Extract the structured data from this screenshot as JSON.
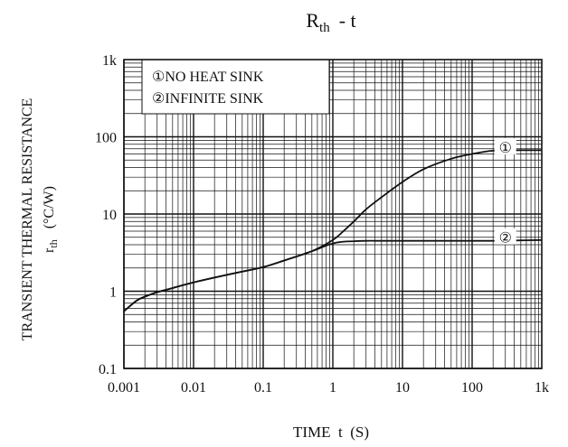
{
  "chart_data": {
    "type": "line",
    "title": {
      "main": "R",
      "sub": "th",
      "suffix": "- t"
    },
    "xlabel": "TIME  t  (S)",
    "ylabel": {
      "line1": "TRANSIENT THERMAL RESISTANCE",
      "symbol": "r",
      "sub": "th",
      "unit": "(°C/W)"
    },
    "x_scale": "log",
    "y_scale": "log",
    "xlim": [
      0.001,
      1000
    ],
    "ylim": [
      0.1,
      1000
    ],
    "grid": true,
    "x_ticks": [
      {
        "value": 0.001,
        "label": "0.001"
      },
      {
        "value": 0.01,
        "label": "0.01"
      },
      {
        "value": 0.1,
        "label": "0.1"
      },
      {
        "value": 1,
        "label": "1"
      },
      {
        "value": 10,
        "label": "10"
      },
      {
        "value": 100,
        "label": "100"
      },
      {
        "value": 1000,
        "label": "1k"
      }
    ],
    "y_ticks": [
      {
        "value": 0.1,
        "label": "0.1"
      },
      {
        "value": 1,
        "label": "1"
      },
      {
        "value": 10,
        "label": "10"
      },
      {
        "value": 100,
        "label": "100"
      },
      {
        "value": 1000,
        "label": "1k"
      }
    ],
    "legend": {
      "placement": "top-left",
      "entries": [
        "①NO HEAT SINK",
        "②INFINITE SINK"
      ]
    },
    "series": [
      {
        "name": "①",
        "x": [
          0.001,
          0.0015,
          0.002,
          0.003,
          0.005,
          0.01,
          0.02,
          0.05,
          0.1,
          0.2,
          0.5,
          1,
          1.5,
          2,
          3,
          5,
          10,
          20,
          50,
          100,
          200,
          500,
          1000
        ],
        "y": [
          0.55,
          0.75,
          0.85,
          0.97,
          1.1,
          1.3,
          1.5,
          1.8,
          2.05,
          2.5,
          3.3,
          4.6,
          6.3,
          8.0,
          11.5,
          16.5,
          26,
          38,
          52,
          60,
          66,
          67,
          67
        ]
      },
      {
        "name": "②",
        "x": [
          0.001,
          0.0015,
          0.002,
          0.003,
          0.005,
          0.01,
          0.02,
          0.05,
          0.1,
          0.2,
          0.5,
          0.8,
          1,
          1.2,
          1.5,
          2,
          3,
          5,
          10,
          20,
          50,
          100,
          200,
          500,
          1000
        ],
        "y": [
          0.55,
          0.75,
          0.85,
          0.97,
          1.1,
          1.3,
          1.5,
          1.8,
          2.05,
          2.5,
          3.3,
          3.9,
          4.15,
          4.3,
          4.4,
          4.45,
          4.5,
          4.5,
          4.5,
          4.5,
          4.5,
          4.5,
          4.5,
          4.55,
          4.6
        ]
      }
    ]
  }
}
